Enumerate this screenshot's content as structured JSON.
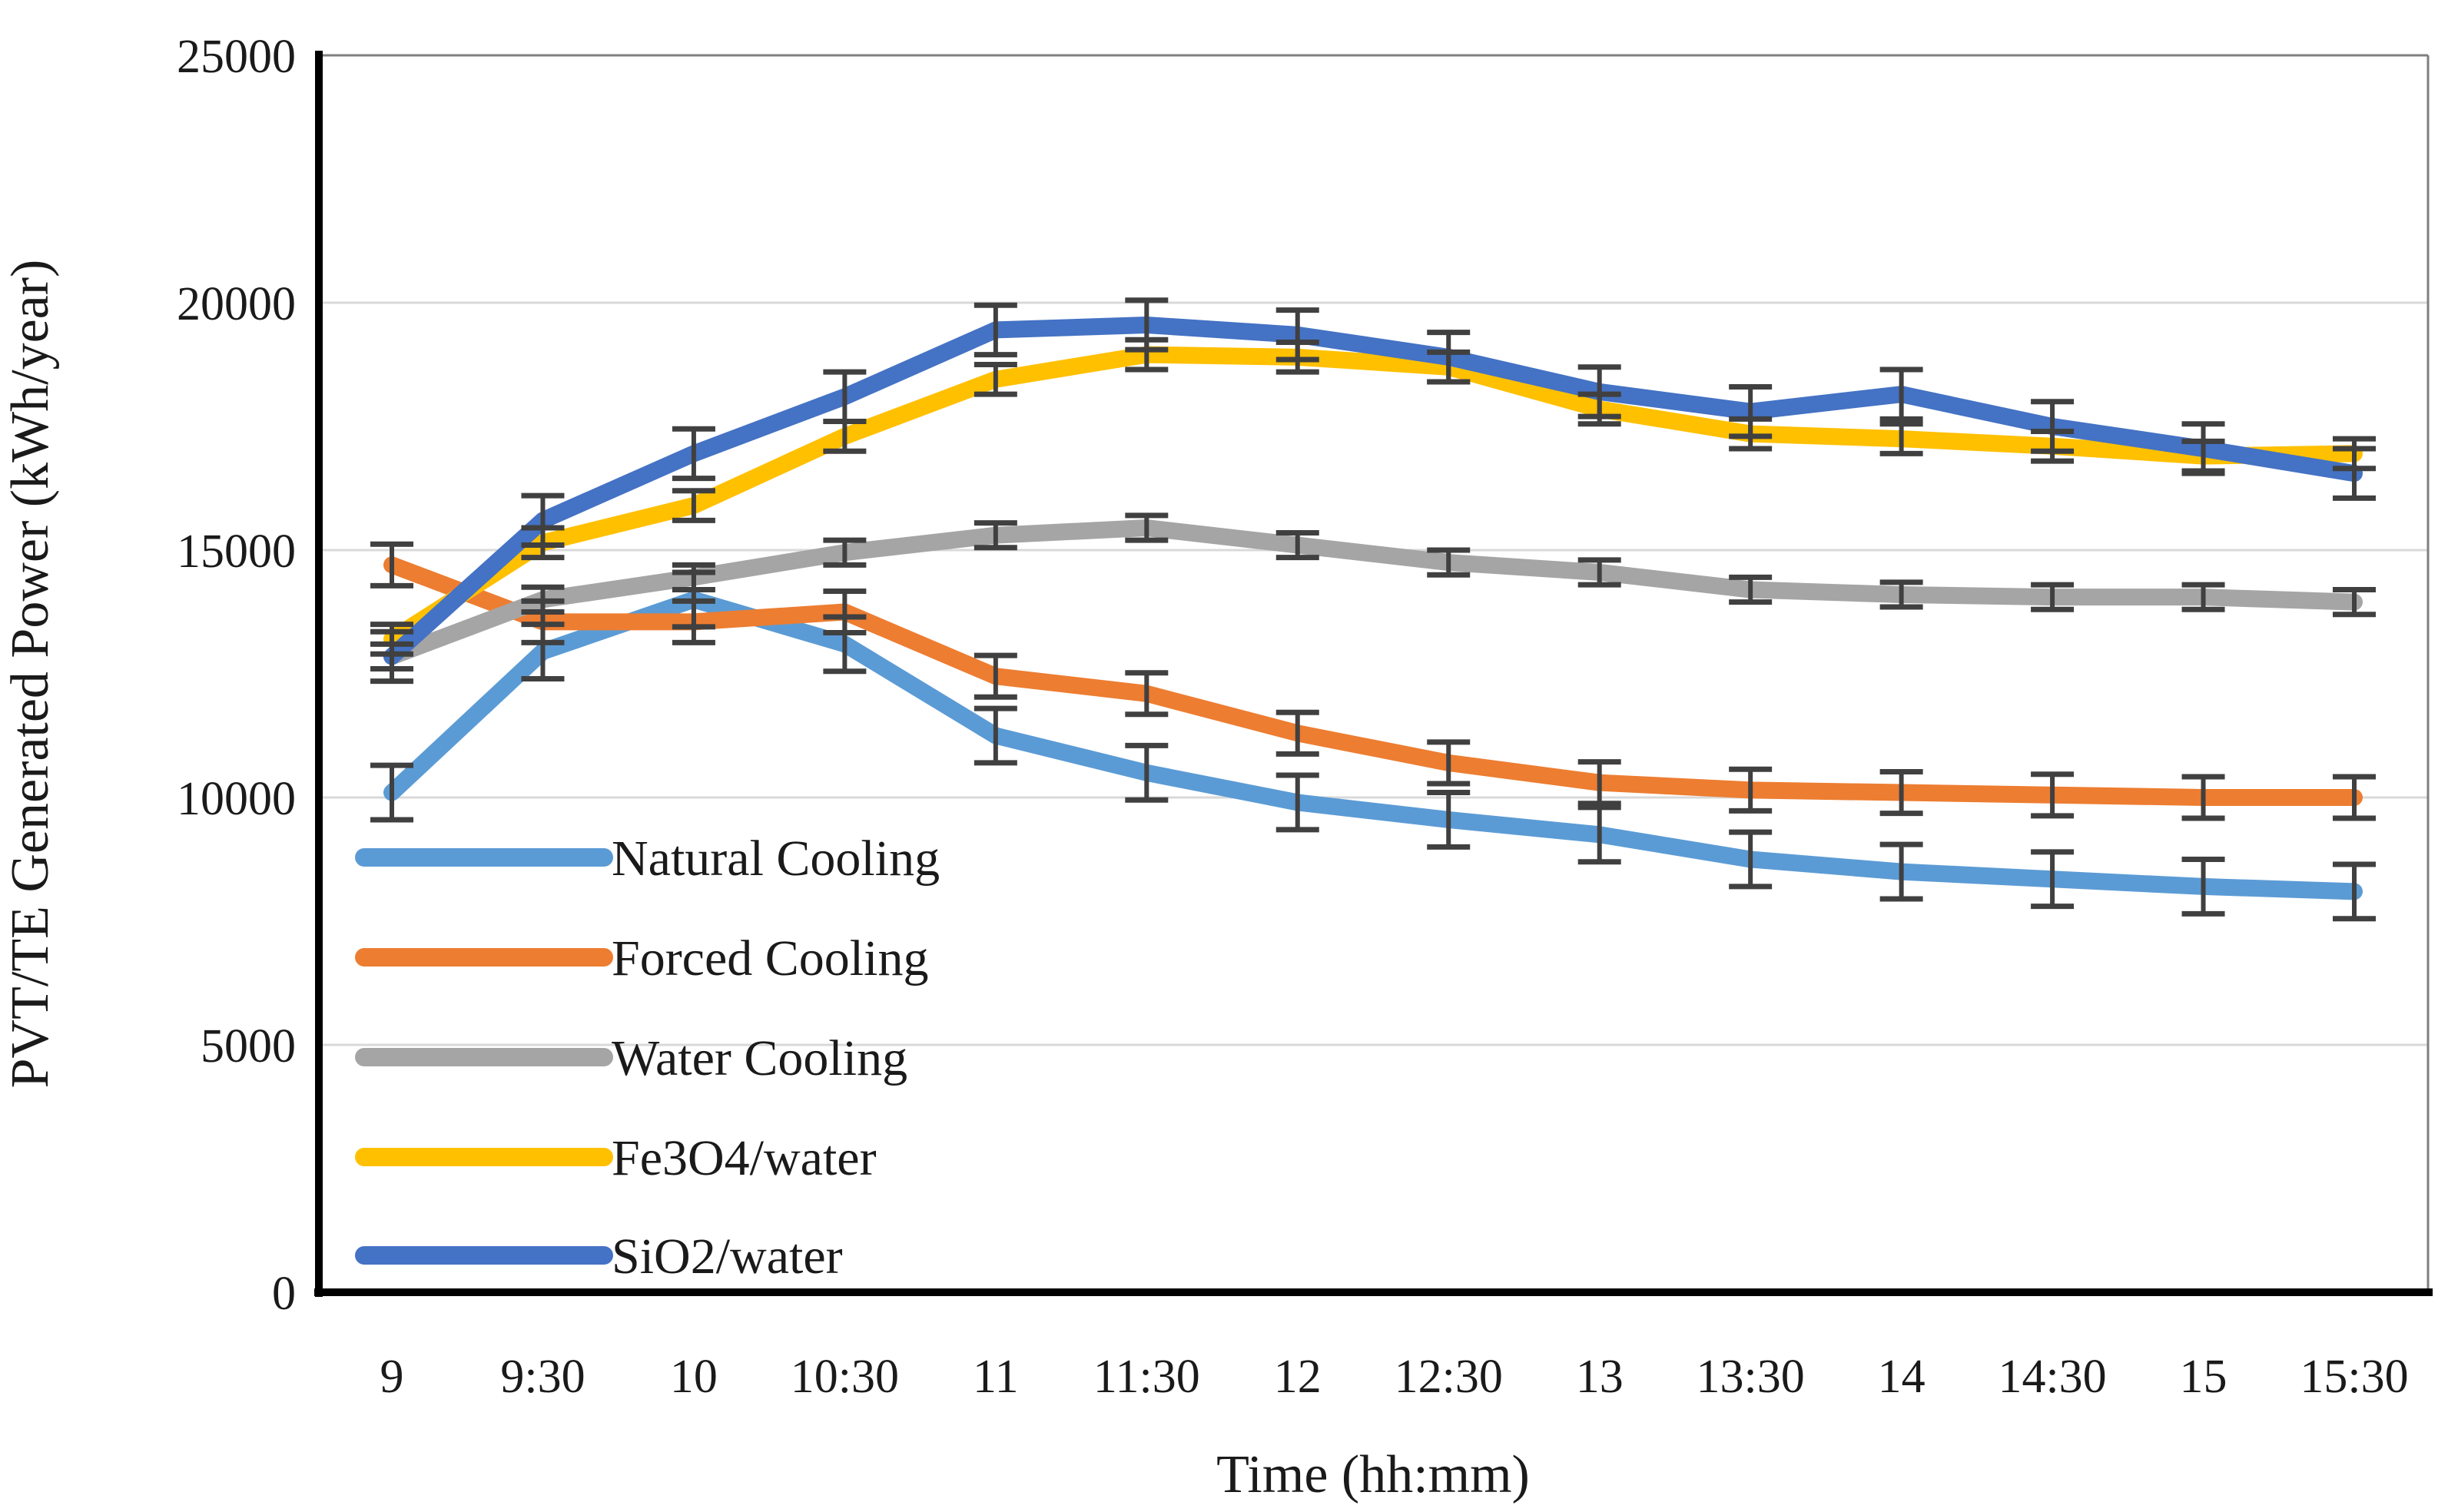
{
  "colors": {
    "background": "#ffffff",
    "gridline": "#d9d9d9",
    "axis_line": "#000000",
    "plot_border": "#7f7f7f",
    "error_bar": "#404040",
    "text": "#1a1a1a"
  },
  "chart_data": {
    "type": "line",
    "title": "",
    "xlabel": "Time (hh:mm)",
    "ylabel": "PVT/TE Generated Power (kWh/year)",
    "categories": [
      "9",
      "9:30",
      "10",
      "10:30",
      "11",
      "11:30",
      "12",
      "12:30",
      "13",
      "13:30",
      "14",
      "14:30",
      "15",
      "15:30"
    ],
    "ylim": [
      0,
      25000
    ],
    "ytick_step": 5000,
    "ytick_labels": [
      "0",
      "5000",
      "10000",
      "15000",
      "20000",
      "25000"
    ],
    "grid": "horizontal",
    "legend_position": "inside-left",
    "series": [
      {
        "name": "Natural Cooling",
        "color": "#5B9BD5",
        "error": 550,
        "values": [
          10100,
          12950,
          14000,
          13100,
          11250,
          10500,
          9900,
          9550,
          9250,
          8750,
          8500,
          8350,
          8200,
          8100
        ]
      },
      {
        "name": "Forced Cooling",
        "color": "#ED7D31",
        "error": 420,
        "values": [
          14700,
          13550,
          13550,
          13750,
          12450,
          12100,
          11300,
          10700,
          10300,
          10150,
          10100,
          10050,
          10000,
          10000
        ]
      },
      {
        "name": "Water Cooling",
        "color": "#A5A5A5",
        "error": 250,
        "values": [
          12850,
          14000,
          14450,
          14950,
          15300,
          15450,
          15100,
          14750,
          14550,
          14200,
          14100,
          14050,
          14050,
          13950
        ]
      },
      {
        "name": "Fe3O4/water",
        "color": "#FFC000",
        "error": 300,
        "values": [
          13200,
          15150,
          15900,
          17300,
          18450,
          18950,
          18900,
          18700,
          17850,
          17350,
          17250,
          17100,
          16900,
          16950
        ]
      },
      {
        "name": "SiO2/water",
        "color": "#4472C4",
        "error": 500,
        "values": [
          12850,
          15600,
          16950,
          18100,
          19450,
          19550,
          19350,
          18900,
          18200,
          17800,
          18150,
          17500,
          17050,
          16550
        ]
      }
    ]
  }
}
